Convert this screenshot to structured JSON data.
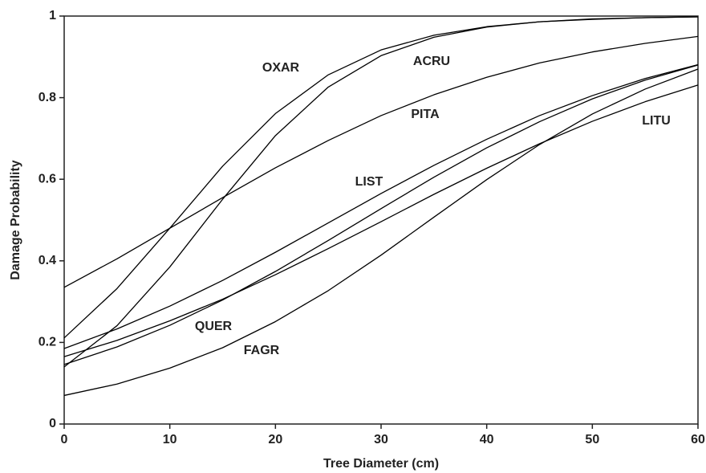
{
  "chart_data": {
    "type": "line",
    "x_label": "Tree Diameter (cm)",
    "y_label": "Damage Probability",
    "x": [
      0,
      5,
      10,
      15,
      20,
      25,
      30,
      35,
      40,
      45,
      50,
      55,
      60
    ],
    "xlim": [
      0,
      60
    ],
    "xticks": [
      0,
      10,
      20,
      30,
      40,
      50,
      60
    ],
    "ylim": [
      0,
      1
    ],
    "yticks": [
      0,
      0.2,
      0.4,
      0.6,
      0.8,
      1
    ],
    "grid": false,
    "series": [
      {
        "name": "OXAR",
        "color": "#000000",
        "values": [
          0.211,
          0.332,
          0.48,
          0.632,
          0.761,
          0.856,
          0.917,
          0.953,
          0.974,
          0.986,
          0.992,
          0.996,
          0.998
        ]
      },
      {
        "name": "ACRU",
        "color": "#000000",
        "values": [
          0.14,
          0.241,
          0.385,
          0.551,
          0.707,
          0.826,
          0.903,
          0.948,
          0.973,
          0.986,
          0.993,
          0.996,
          0.998
        ]
      },
      {
        "name": "PITA",
        "color": "#000000",
        "values": [
          0.335,
          0.405,
          0.48,
          0.555,
          0.628,
          0.695,
          0.756,
          0.807,
          0.85,
          0.885,
          0.912,
          0.933,
          0.95
        ]
      },
      {
        "name": "LIST",
        "color": "#000000",
        "values": [
          0.185,
          0.233,
          0.289,
          0.352,
          0.421,
          0.493,
          0.565,
          0.634,
          0.698,
          0.756,
          0.805,
          0.847,
          0.881
        ]
      },
      {
        "name": "LITU",
        "color": "#000000",
        "values": [
          0.165,
          0.205,
          0.253,
          0.306,
          0.366,
          0.43,
          0.496,
          0.563,
          0.627,
          0.687,
          0.742,
          0.79,
          0.831
        ]
      },
      {
        "name": "QUER",
        "color": "#000000",
        "values": [
          0.146,
          0.189,
          0.242,
          0.304,
          0.374,
          0.45,
          0.528,
          0.605,
          0.677,
          0.741,
          0.797,
          0.843,
          0.88
        ]
      },
      {
        "name": "FAGR",
        "color": "#000000",
        "values": [
          0.07,
          0.098,
          0.137,
          0.187,
          0.251,
          0.327,
          0.414,
          0.507,
          0.599,
          0.685,
          0.76,
          0.821,
          0.87
        ]
      }
    ]
  }
}
